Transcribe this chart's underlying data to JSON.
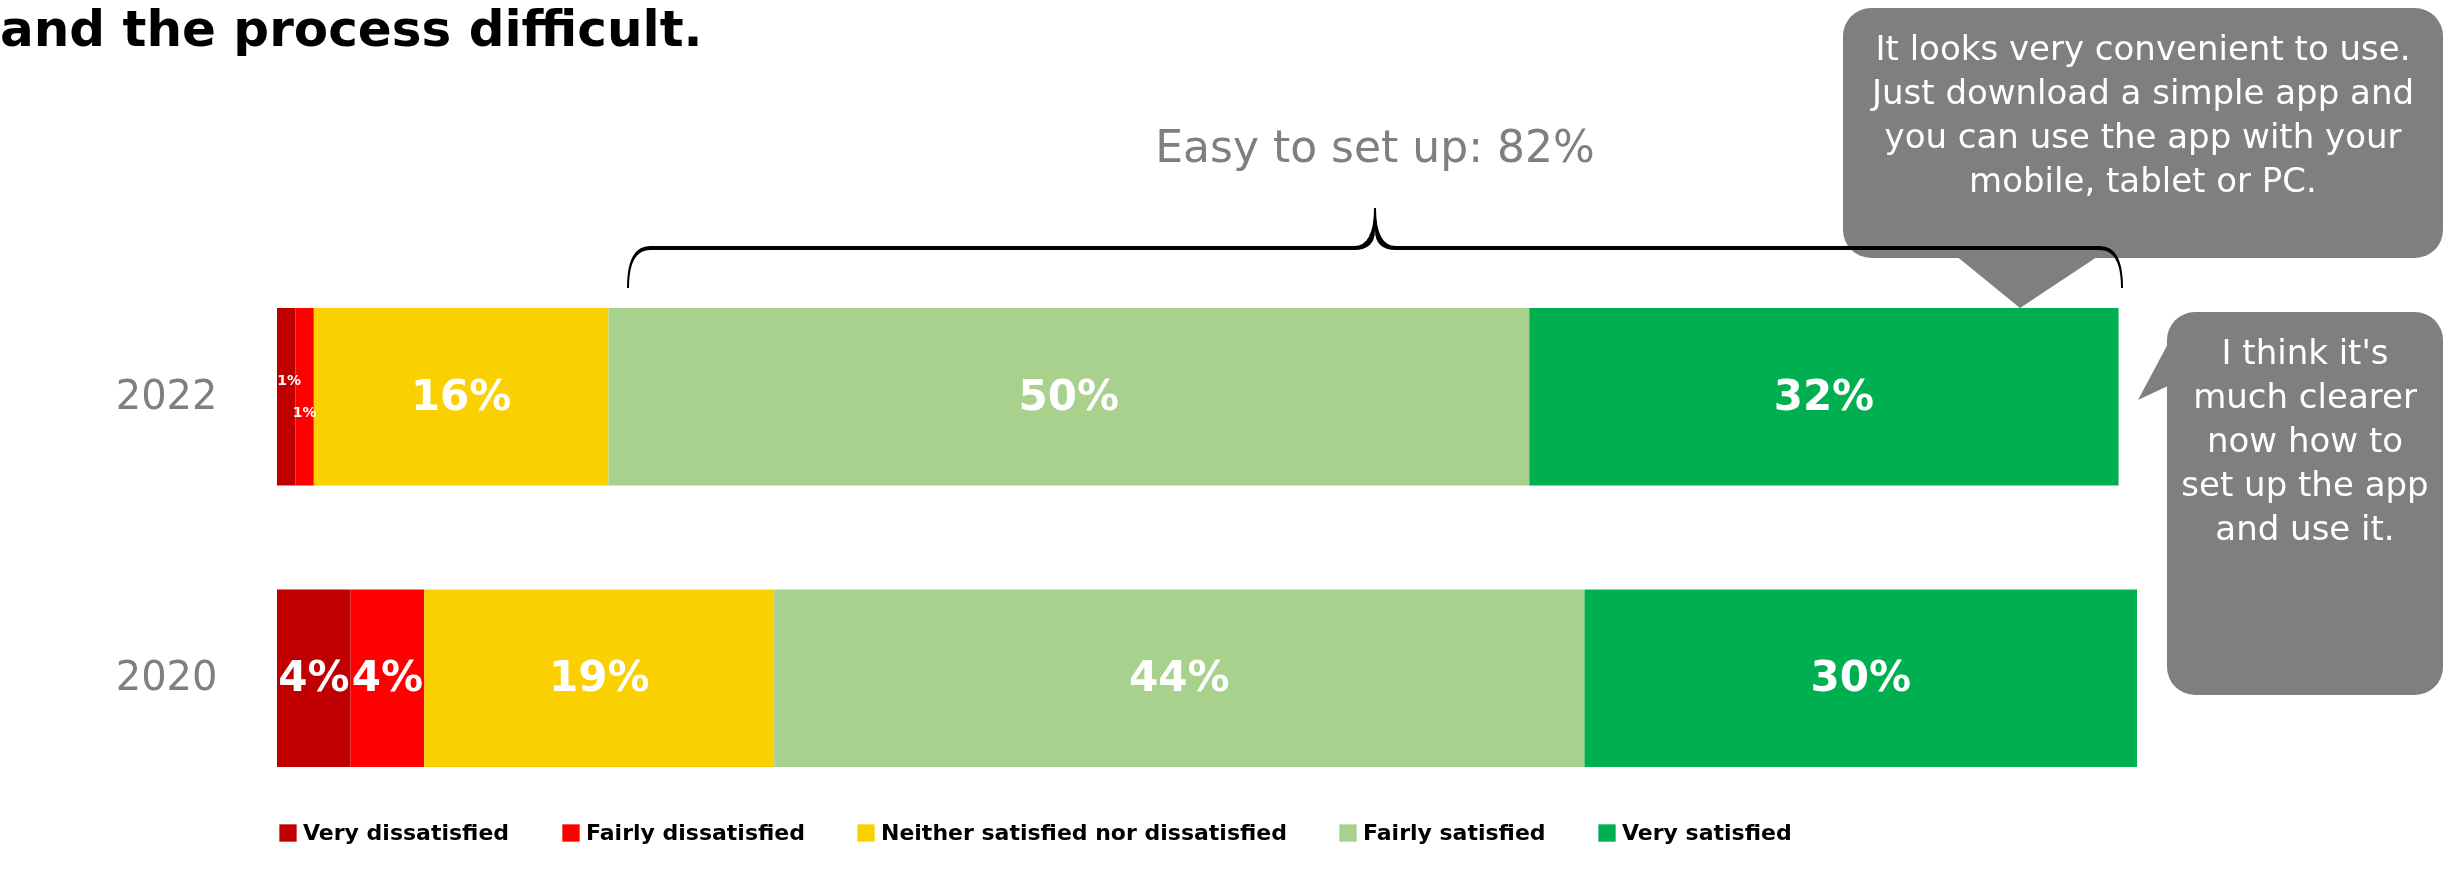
{
  "chart_data": {
    "type": "bar",
    "title": "and the process difficult.",
    "orientation": "horizontal",
    "stacked": true,
    "legend": "bottom",
    "categories": [
      "2022",
      "2020"
    ],
    "series": [
      {
        "name": "Very dissatisfied",
        "color": "#c00000",
        "values": [
          1,
          4
        ],
        "value_labels": [
          "1%",
          "4%"
        ]
      },
      {
        "name": "Fairly dissatisfied",
        "color": "#ff0000",
        "values": [
          1,
          4
        ],
        "value_labels": [
          "1%",
          "4%"
        ]
      },
      {
        "name": "Neither satisfied nor dissatisfied",
        "color": "#fad000",
        "values": [
          16,
          19
        ],
        "value_labels": [
          "16%",
          "19%"
        ]
      },
      {
        "name": "Fairly satisfied",
        "color": "#a9d18e",
        "values": [
          50,
          44
        ],
        "value_labels": [
          "50%",
          "44%"
        ]
      },
      {
        "name": "Very satisfied",
        "color": "#00b050",
        "values": [
          32,
          30
        ],
        "value_labels": [
          "32%",
          "30%"
        ]
      }
    ],
    "annotations": [
      "Easy to set up:  82%",
      "It looks very convenient to use. Just download a simple app and you can use the app with your mobile, tablet or PC.",
      "I think it's much clearer now how to set up the app and use it."
    ]
  }
}
